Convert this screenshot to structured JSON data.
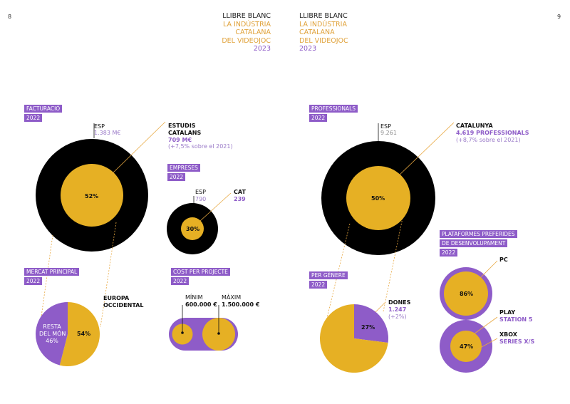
{
  "page": {
    "left_number": "8",
    "right_number": "9",
    "header_left": {
      "line1": "LLIBRE BLANC",
      "line2": "LA INDÚSTRIA",
      "line3": "CATALANA",
      "line4": "DEL VIDEOJOC",
      "year": "2023"
    },
    "header_right": {
      "line1": "LLIBRE BLANC",
      "line2": "LA INDÚSTRIA",
      "line3": "CATALANA",
      "line4": "DEL VIDEOJOC",
      "year": "2023"
    }
  },
  "colors": {
    "black": "#000000",
    "gold": "#e6b024",
    "purple": "#8e5cc8",
    "orange_line": "#e8a840"
  },
  "sections": {
    "facturacio": {
      "tag": "FACTURACIÓ",
      "year": "2022",
      "esp_label": "ESP",
      "esp_value": "1.383 M€",
      "cat_title_1": "ESTUDIS",
      "cat_title_2": "CATALANS",
      "cat_value": "709 M€",
      "cat_note": "(+7,5% sobre el 2021)",
      "pct_label": "52%"
    },
    "empreses": {
      "tag": "EMPRESES",
      "year": "2022",
      "esp_label": "ESP",
      "esp_value": "790",
      "cat_label": "CAT",
      "cat_value": "239",
      "pct_label": "30%"
    },
    "mercat": {
      "tag": "MERCAT PRINCIPAL",
      "year": "2022",
      "rest_1": "RESTA",
      "rest_2": "DEL MÓN",
      "rest_3": "46%",
      "eu_1": "EUROPA",
      "eu_2": "OCCIDENTAL",
      "eu_pct": "54%"
    },
    "cost": {
      "tag": "COST PER PROJECTE",
      "year": "2022",
      "min_label": "MÍNIM",
      "min_value": "600.000 €",
      "max_label": "MÀXIM",
      "max_value": "1.500.000 €"
    },
    "professionals": {
      "tag": "PROFESSIONALS",
      "year": "2022",
      "esp_label": "ESP",
      "esp_value": "9.261",
      "cat_title": "CATALUNYA",
      "cat_value": "4.619 PROFESSIONALS",
      "cat_note": "(+8,7% sobre el 2021)",
      "pct_label": "50%"
    },
    "genere": {
      "tag": "PER GÈNERE",
      "year": "2022",
      "dones_label": "DONES",
      "dones_value": "1.247",
      "dones_note": "(+2%)",
      "pct_label": "27%"
    },
    "plataformes": {
      "tag_1": "PLATAFORMES PREFERIDES",
      "tag_2": "DE DESENVOLUPAMENT",
      "year": "2022",
      "pc_label": "PC",
      "pc_pct": "86%",
      "play_1": "PLAY",
      "play_2": "STATION 5",
      "xbox_1": "XBOX",
      "xbox_2": "SERIES X/S",
      "xbox_pct": "47%"
    }
  },
  "chart_data": [
    {
      "type": "pie",
      "title": "FACTURACIÓ 2022",
      "labels": [
        "ESP",
        "ESTUDIS CATALANS"
      ],
      "values": [
        1383,
        709
      ],
      "units": "M€",
      "share_pct": 52
    },
    {
      "type": "pie",
      "title": "EMPRESES 2022",
      "labels": [
        "ESP",
        "CAT"
      ],
      "values": [
        790,
        239
      ],
      "share_pct": 30
    },
    {
      "type": "pie",
      "title": "MERCAT PRINCIPAL 2022",
      "labels": [
        "EUROPA OCCIDENTAL",
        "RESTA DEL MÓN"
      ],
      "values": [
        54,
        46
      ],
      "units": "%"
    },
    {
      "type": "bar",
      "title": "COST PER PROJECTE 2022",
      "categories": [
        "MÍNIM",
        "MÀXIM"
      ],
      "values": [
        600000,
        1500000
      ],
      "units": "€"
    },
    {
      "type": "pie",
      "title": "PROFESSIONALS 2022",
      "labels": [
        "ESP",
        "CATALUNYA"
      ],
      "values": [
        9261,
        4619
      ],
      "share_pct": 50
    },
    {
      "type": "pie",
      "title": "PER GÈNERE 2022",
      "labels": [
        "DONES"
      ],
      "values": [
        27
      ],
      "units": "%"
    },
    {
      "type": "pie",
      "title": "PLATAFORMES PREFERIDES DE DESENVOLUPAMENT 2022",
      "labels": [
        "PC",
        "XBOX SERIES X/S"
      ],
      "values": [
        86,
        47
      ],
      "units": "%"
    }
  ]
}
